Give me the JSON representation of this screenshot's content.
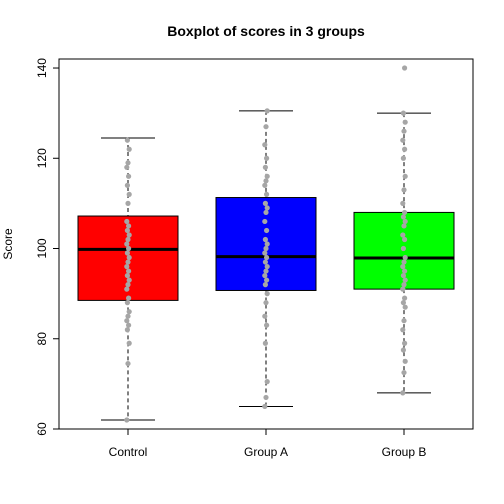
{
  "chart_data": {
    "type": "boxplot",
    "title": "Boxplot of scores in 3 groups",
    "xlabel": "",
    "ylabel": "Score",
    "ylim": [
      60,
      142
    ],
    "yticks": [
      60,
      80,
      100,
      120,
      140
    ],
    "grid": false,
    "legend": "none",
    "categories": [
      "Control",
      "Group A",
      "Group B"
    ],
    "boxes": [
      {
        "category": "Control",
        "color": "#ff0000",
        "whisker_low": 62,
        "q1": 88.5,
        "median": 99.8,
        "q3": 107.2,
        "whisker_high": 124.5,
        "points": [
          62,
          74.5,
          79,
          82,
          83,
          84,
          85,
          86,
          88,
          89,
          91,
          92,
          93,
          94,
          95,
          96,
          97,
          98,
          99,
          100,
          101,
          102,
          103,
          104,
          105,
          106,
          110,
          112,
          114,
          116,
          118,
          119,
          122,
          124
        ]
      },
      {
        "category": "Group A",
        "color": "#0000ff",
        "whisker_low": 65,
        "q1": 90.7,
        "median": 98.2,
        "q3": 111.3,
        "whisker_high": 130.5,
        "points": [
          65,
          67,
          70.5,
          79,
          83,
          85,
          88,
          90,
          92,
          93,
          94,
          95,
          96,
          97,
          98,
          99,
          100,
          101,
          102,
          104,
          106,
          108,
          109,
          110,
          112,
          114,
          115,
          116,
          118,
          120,
          123,
          127,
          130.5
        ]
      },
      {
        "category": "Group B",
        "color": "#00ff00",
        "whisker_low": 68,
        "q1": 91,
        "median": 97.9,
        "q3": 108,
        "whisker_high": 130,
        "points": [
          68,
          72.5,
          75,
          77.5,
          79,
          82,
          84,
          87,
          88,
          89,
          91,
          92,
          93,
          94,
          95,
          96,
          97,
          98,
          100,
          102,
          103,
          105,
          106,
          107,
          108,
          110,
          113,
          116,
          120,
          122,
          124,
          126,
          128,
          130,
          140
        ]
      }
    ],
    "point_color": "#a6a6a6"
  }
}
